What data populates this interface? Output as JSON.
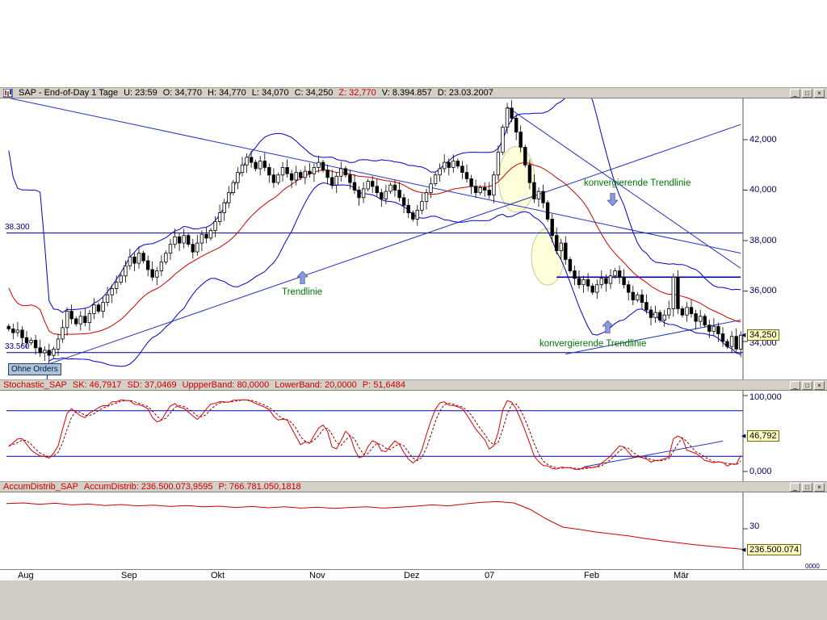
{
  "app": {
    "window_controls": {
      "minimize": "_",
      "maximize": "□",
      "close": "×"
    }
  },
  "main_panel": {
    "title": "SAP - End-of-Day 1 Tage",
    "fields": [
      "U: 23:59",
      "O: 34,770",
      "H: 34,770",
      "L: 34,070",
      "C: 34,250"
    ],
    "z_field": "Z: 32,770",
    "fields2": [
      "V: 8.394.857",
      "D: 23.03.2007"
    ],
    "left_price_labels": [
      {
        "text": "38.300"
      },
      {
        "text": "33.560"
      }
    ],
    "orders_label": "Ohne Orders",
    "value_box": "34,250",
    "y_axis_labels": [
      "42,000",
      "40,000",
      "38,000",
      "36,000",
      "34,000"
    ],
    "annotations": {
      "konv1": "konvergierende Trendlinie",
      "trend": "Trendlinie",
      "konv2": "konvergierende Trendlinie"
    }
  },
  "stoch_panel": {
    "name": "Stochastic_SAP",
    "fields": [
      "SK: 46,7917",
      "SD: 37,0469",
      "UppperBand: 80,0000",
      "LowerBand: 20,0000",
      "P: 51,6484"
    ],
    "y_axis_labels": [
      "100,000",
      "0,000"
    ],
    "value_box": "46,792"
  },
  "accum_panel": {
    "name": "AccumDistrib_SAP",
    "fields": [
      "AccumDistrib: 236.500.073,9595",
      "P: 766.781.050,1818"
    ],
    "y_axis_labels": [
      "30"
    ],
    "y_axis_partial": "0000",
    "value_box": "236.500.074"
  },
  "time_axis": {
    "labels": [
      "Aug",
      "Sep",
      "Okt",
      "Nov",
      "Dez",
      "07",
      "Feb",
      "Mär"
    ],
    "day_index": [
      2,
      25,
      45,
      67,
      88,
      106,
      128,
      148
    ]
  },
  "colors": {
    "titlebar_bg": "#d4d0c8",
    "chart_bg": "#ffffff",
    "band_blue": "#0000cc",
    "trendline_blue": "#2233bb",
    "support_navy": "#000080",
    "ma_red": "#cc0000",
    "stoch_red": "#dd0000",
    "annotation_green": "#007700",
    "arrow_fill": "#8b9bd9",
    "value_box_bg": "#ffffc6",
    "axis_text": "#000060"
  },
  "chart_data": [
    {
      "type": "candlestick",
      "symbol": "SAP",
      "period": "End-of-Day 1 Tage",
      "date": "23.03.2007",
      "last_ohlc": {
        "open": 34.77,
        "high": 34.77,
        "low": 34.07,
        "close": 34.25
      },
      "volume": 8394857,
      "z_value": 32.77,
      "ylim": [
        32.4,
        43.85
      ],
      "y_ticks": [
        34,
        36,
        38,
        40,
        42
      ],
      "open_first": 34.6,
      "closes": [
        34.5,
        34.35,
        34.45,
        34.15,
        33.95,
        34.05,
        33.75,
        33.55,
        33.65,
        33.45,
        33.7,
        34.1,
        34.55,
        35.2,
        34.9,
        34.7,
        35.0,
        34.75,
        35.1,
        35.45,
        35.2,
        35.55,
        35.85,
        36.1,
        36.35,
        36.6,
        37.0,
        37.35,
        37.1,
        37.5,
        37.2,
        36.85,
        36.55,
        36.8,
        37.15,
        37.5,
        37.85,
        38.15,
        37.9,
        38.2,
        37.85,
        37.55,
        37.9,
        38.25,
        38.1,
        38.4,
        38.75,
        39.1,
        39.5,
        39.9,
        40.3,
        40.7,
        41.0,
        41.3,
        41.1,
        40.85,
        41.15,
        40.9,
        40.6,
        40.3,
        40.6,
        40.9,
        40.65,
        40.4,
        40.7,
        40.5,
        40.75,
        40.65,
        40.9,
        41.1,
        40.8,
        40.5,
        40.2,
        40.55,
        40.85,
        40.6,
        40.3,
        40.0,
        39.7,
        40.05,
        40.35,
        40.15,
        39.9,
        39.65,
        39.95,
        40.2,
        40.0,
        39.7,
        39.4,
        39.1,
        38.85,
        39.2,
        39.55,
        39.9,
        40.25,
        40.6,
        40.85,
        41.1,
        40.9,
        41.15,
        40.95,
        40.7,
        40.45,
        40.15,
        39.9,
        40.1,
        40.0,
        39.8,
        40.6,
        41.5,
        42.5,
        43.25,
        42.85,
        42.3,
        41.7,
        41.0,
        40.3,
        39.65,
        39.95,
        39.5,
        38.85,
        38.2,
        37.6,
        37.9,
        37.25,
        36.8,
        36.5,
        36.25,
        36.45,
        36.2,
        35.95,
        36.25,
        36.5,
        36.3,
        36.6,
        36.8,
        36.55,
        36.25,
        35.95,
        35.65,
        35.85,
        35.55,
        35.25,
        34.95,
        35.15,
        34.85,
        35.05,
        35.3,
        36.55,
        35.3,
        35.05,
        35.35,
        35.1,
        34.8,
        35.0,
        34.65,
        34.4,
        34.6,
        34.3,
        34.0,
        33.8,
        34.2,
        33.7,
        34.25
      ],
      "pre_closes": [
        44.0,
        42.0,
        39.0,
        36.0,
        34.0,
        33.5,
        34.8,
        36.2,
        43.0,
        41.0,
        36.0,
        34.5,
        35.2,
        34.4,
        35.0,
        34.6,
        34.9,
        34.5,
        34.8,
        34.6
      ],
      "indicators": {
        "sma_period": 20,
        "bollinger_mult": 2
      },
      "support_lines": [
        {
          "price": 38.3,
          "label": "38.300"
        },
        {
          "price": 33.56,
          "label": "33.560"
        }
      ],
      "resistance_segment": {
        "from_day": 122,
        "to_day": 163,
        "price": 36.55
      },
      "trendlines": [
        {
          "name": "rising-support",
          "from_day": 8,
          "from_price": 33.05,
          "to_day": 163,
          "to_price": 42.6
        },
        {
          "name": "falling-long",
          "from_day": 0,
          "from_price": 43.65,
          "to_day": 163,
          "to_price": 37.5
        },
        {
          "name": "falling-from-peak",
          "from_day": 111,
          "from_price": 43.3,
          "to_day": 163,
          "to_price": 36.9
        },
        {
          "name": "rising-short",
          "from_day": 124,
          "from_price": 33.5,
          "to_day": 163,
          "to_price": 34.85
        }
      ],
      "ellipses": [
        {
          "day": 113.1,
          "price": 40.43,
          "rx_days": 4.0,
          "ry_price": 1.31
        },
        {
          "day": 120.0,
          "price": 37.36,
          "rx_days": 3.6,
          "ry_price": 1.12
        }
      ]
    },
    {
      "type": "line",
      "name": "Stochastic",
      "params": {
        "sk": 46.7917,
        "sd": 37.0469,
        "upper_band": 80,
        "lower_band": 20,
        "p": 51.6484
      },
      "ylim": [
        0,
        100
      ],
      "derived_from": "stochastic(14,3,3) of candlestick series",
      "trendline": {
        "from_day": 128,
        "from_val": 6,
        "to_day": 159,
        "to_val": 40
      }
    },
    {
      "type": "line",
      "name": "AccumDistrib",
      "current": 236500073.9595,
      "p_value": 766781050.1818,
      "y_tick": {
        "label": "30",
        "value_millions": 300
      },
      "values_millions": [
        378,
        380,
        376,
        379,
        374,
        377,
        372,
        375,
        371,
        373,
        369,
        372,
        368,
        370,
        366,
        369,
        365,
        368,
        364,
        367,
        363,
        366,
        368,
        364,
        367,
        370,
        374,
        371,
        377,
        382,
        384,
        380,
        360,
        330,
        305,
        298,
        290,
        284,
        278,
        270,
        263,
        257,
        251,
        246,
        241,
        236.5
      ]
    }
  ]
}
